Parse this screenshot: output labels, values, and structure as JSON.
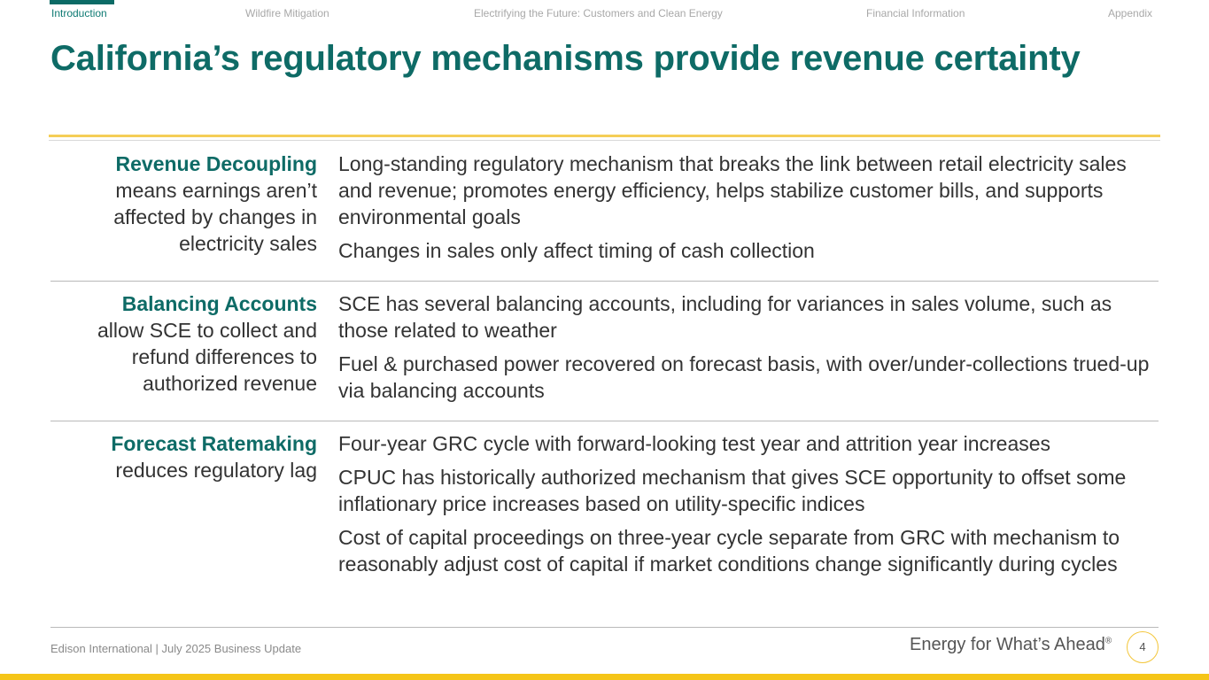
{
  "nav": {
    "items": [
      {
        "label": "Introduction",
        "active": true
      },
      {
        "label": "Wildfire Mitigation",
        "active": false
      },
      {
        "label": "Electrifying the Future: Customers and Clean Energy",
        "active": false
      },
      {
        "label": "Financial Information",
        "active": false
      },
      {
        "label": "Appendix",
        "active": false
      }
    ]
  },
  "title": "California’s regulatory mechanisms provide revenue certainty",
  "rows": [
    {
      "heading": "Revenue Decoupling",
      "subtext": "means earnings aren’t affected by changes in electricity sales",
      "bullets": [
        "Long-standing regulatory mechanism that breaks the link between retail electricity sales and revenue; promotes energy efficiency, helps stabilize customer bills, and supports environmental goals",
        "Changes in sales only affect timing of cash collection"
      ]
    },
    {
      "heading": "Balancing Accounts",
      "subtext": "allow SCE to collect and refund differences to authorized revenue",
      "bullets": [
        "SCE has several balancing accounts, including for variances in sales volume, such as those related to weather",
        "Fuel & purchased power recovered on forecast basis, with over/under-collections trued-up via balancing accounts"
      ]
    },
    {
      "heading": "Forecast Ratemaking",
      "subtext": "reduces regulatory lag",
      "bullets": [
        "Four-year GRC cycle with forward-looking test year and attrition year increases",
        "CPUC has historically authorized mechanism that gives SCE opportunity to offset some inflationary price increases based on utility-specific indices",
        "Cost of capital proceedings on three-year cycle separate from GRC with mechanism to reasonably adjust cost of capital if market conditions change significantly during cycles"
      ]
    }
  ],
  "footer": {
    "left": "Edison International |  July 2025 Business Update",
    "tagline": "Energy for What’s Ahead",
    "tagline_mark": "®",
    "page_number": "4"
  },
  "colors": {
    "accent_teal": "#0e6b66",
    "accent_gold": "#f5c518"
  }
}
